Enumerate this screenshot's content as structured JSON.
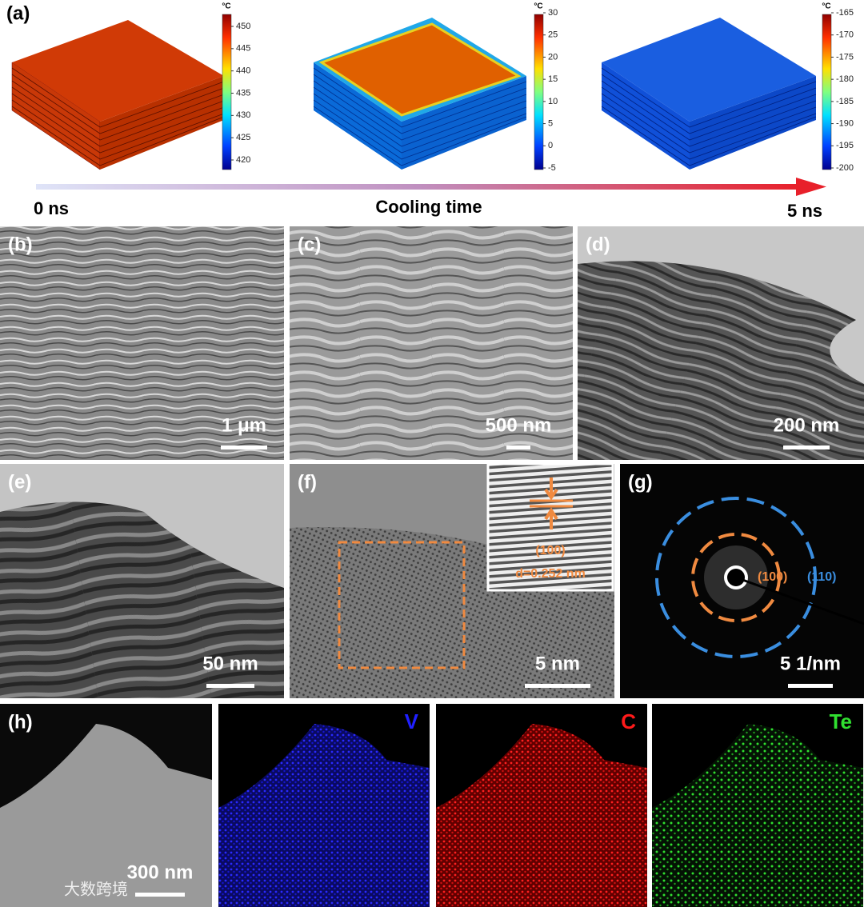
{
  "panel_a": {
    "label": "(a)",
    "colorbars": [
      {
        "unit": "°C",
        "ticks": [
          450,
          445,
          440,
          435,
          430,
          425,
          420
        ]
      },
      {
        "unit": "°C",
        "ticks": [
          30,
          25,
          20,
          15,
          10,
          5,
          0,
          -5
        ]
      },
      {
        "unit": "°C",
        "ticks": [
          -165,
          -170,
          -175,
          -180,
          -185,
          -190,
          -195,
          -200
        ]
      }
    ],
    "start": "0 ns",
    "axis_label": "Cooling time",
    "end": "5 ns"
  },
  "panels": [
    {
      "label": "(b)",
      "scale_bar": "1 μm"
    },
    {
      "label": "(c)",
      "scale_bar": "500 nm"
    },
    {
      "label": "(d)",
      "scale_bar": "200 nm"
    },
    {
      "label": "(e)",
      "scale_bar": "50 nm"
    },
    {
      "label": "(f)",
      "scale_bar": "5 nm"
    },
    {
      "label": "(g)",
      "scale_bar": "5 1/nm"
    },
    {
      "label": "(h)",
      "scale_bar": "300 nm"
    }
  ],
  "panel_f_inset": {
    "plane": "(100)",
    "spacing": "d=0.252 nm"
  },
  "panel_g_rings": [
    "(100)",
    "(110)"
  ],
  "panel_h_elements": [
    "V",
    "C",
    "Te"
  ],
  "watermark": "大数跨境"
}
